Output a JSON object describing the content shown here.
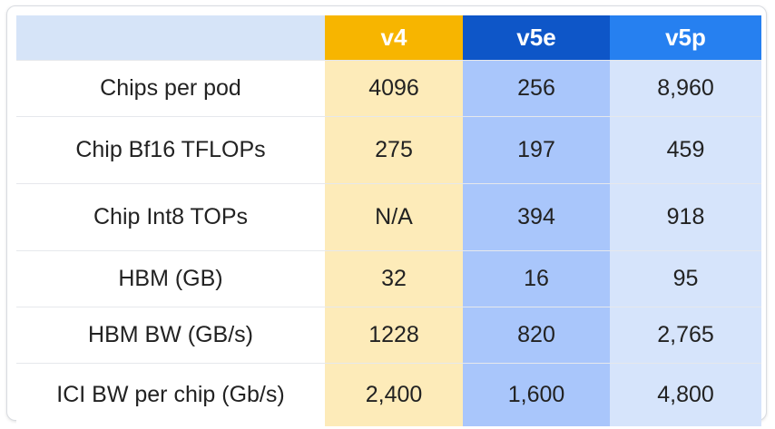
{
  "table": {
    "columns": [
      "",
      "v4",
      "v5e",
      "v5p"
    ],
    "rows": [
      {
        "label": "Chips per pod",
        "v4": "4096",
        "v5e": "256",
        "v5p": "8,960"
      },
      {
        "label": "Chip Bf16 TFLOPs",
        "v4": "275",
        "v5e": "197",
        "v5p": "459"
      },
      {
        "label": "Chip Int8 TOPs",
        "v4": "N/A",
        "v5e": "394",
        "v5p": "918"
      },
      {
        "label": "HBM (GB)",
        "v4": "32",
        "v5e": "16",
        "v5p": "95"
      },
      {
        "label": "HBM BW (GB/s)",
        "v4": "1228",
        "v5e": "820",
        "v5p": "2,765"
      },
      {
        "label": "ICI BW per chip (Gb/s)",
        "v4": "2,400",
        "v5e": "1,600",
        "v5p": "4,800"
      }
    ]
  },
  "colors": {
    "v4_header": "#f7b500",
    "v4_body": "#fdebb9",
    "v5e_header": "#0e56c8",
    "v5e_body": "#a9c6fb",
    "v5p_header": "#2680f0",
    "v5p_body": "#d6e4fb",
    "corner": "#d6e4f8"
  }
}
